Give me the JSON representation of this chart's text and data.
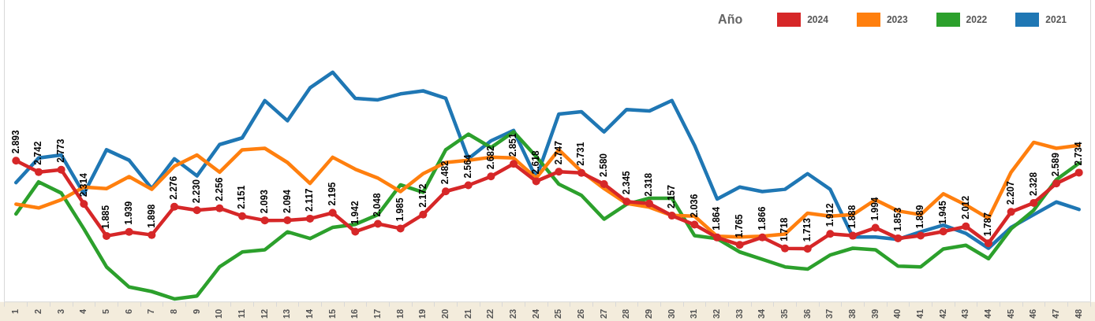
{
  "chart_data": {
    "type": "line",
    "categories": [
      "1",
      "2",
      "3",
      "4",
      "5",
      "6",
      "7",
      "8",
      "9",
      "10",
      "11",
      "12",
      "13",
      "14",
      "15",
      "16",
      "17",
      "18",
      "19",
      "20",
      "21",
      "22",
      "23",
      "24",
      "25",
      "26",
      "27",
      "28",
      "29",
      "30",
      "31",
      "32",
      "33",
      "34",
      "35",
      "36",
      "37",
      "38",
      "39",
      "40",
      "41",
      "42",
      "43",
      "44",
      "45",
      "46",
      "47",
      "48"
    ],
    "legend_title": "Año",
    "legend": "top right",
    "grid": false,
    "tick_labels": "x",
    "line_style": "solid",
    "series": [
      {
        "name": "2024",
        "color": "#d62728",
        "marker": "circle",
        "values": [
          2.893,
          2.742,
          2.773,
          2.314,
          1.885,
          1.939,
          1.898,
          2.276,
          2.23,
          2.256,
          2.151,
          2.093,
          2.094,
          2.117,
          2.195,
          1.942,
          2.048,
          1.985,
          2.172,
          2.482,
          2.564,
          2.682,
          2.851,
          2.618,
          2.747,
          2.731,
          2.58,
          2.345,
          2.318,
          2.157,
          2.036,
          1.864,
          1.765,
          1.866,
          1.718,
          1.713,
          1.912,
          1.888,
          1.994,
          1.853,
          1.889,
          1.945,
          2.012,
          1.787,
          2.207,
          2.328,
          2.589,
          2.734
        ],
        "value_labels": [
          "2.893",
          "2.742",
          "2.773",
          "2.314",
          "1.885",
          "1.939",
          "1.898",
          "2.276",
          "2.230",
          "2.256",
          "2.151",
          "2.093",
          "2.094",
          "2.117",
          "2.195",
          "1.942",
          "2.048",
          "1.985",
          "2.172",
          "2.482",
          "2.564",
          "2.682",
          "2.851",
          "2.618",
          "2.747",
          "2.731",
          "2.580",
          "2.345",
          "2.318",
          "2.157",
          "2.036",
          "1.864",
          "1.765",
          "1.866",
          "1.718",
          "1.713",
          "1.912",
          "1.888",
          "1.994",
          "1.853",
          "1.889",
          "1.945",
          "2.012",
          "1.787",
          "2.207",
          "2.328",
          "2.589",
          "2.734"
        ]
      },
      {
        "name": "2023",
        "color": "#ff7f0e",
        "marker": "none",
        "values": [
          2.31,
          2.26,
          2.37,
          2.54,
          2.52,
          2.68,
          2.51,
          2.82,
          2.97,
          2.74,
          3.04,
          3.06,
          2.87,
          2.59,
          2.94,
          2.78,
          2.66,
          2.48,
          2.72,
          2.87,
          2.9,
          2.94,
          2.93,
          2.66,
          3.04,
          2.75,
          2.52,
          2.32,
          2.27,
          2.16,
          2.15,
          1.88,
          1.87,
          1.88,
          1.91,
          2.19,
          2.15,
          2.17,
          2.37,
          2.22,
          2.17,
          2.45,
          2.3,
          2.12,
          2.74,
          3.14,
          3.06,
          3.1
        ]
      },
      {
        "name": "2022",
        "color": "#2ca02c",
        "marker": "none",
        "values": [
          2.18,
          2.61,
          2.46,
          1.98,
          1.47,
          1.2,
          1.14,
          1.04,
          1.08,
          1.47,
          1.67,
          1.7,
          1.94,
          1.85,
          2.0,
          2.04,
          2.17,
          2.57,
          2.47,
          3.04,
          3.25,
          3.07,
          3.28,
          2.95,
          2.58,
          2.43,
          2.11,
          2.31,
          2.39,
          2.39,
          1.89,
          1.85,
          1.67,
          1.57,
          1.47,
          1.44,
          1.63,
          1.72,
          1.7,
          1.48,
          1.47,
          1.71,
          1.76,
          1.58,
          1.98,
          2.23,
          2.64,
          2.86
        ]
      },
      {
        "name": "2021",
        "color": "#1f77b4",
        "marker": "none",
        "values": [
          2.6,
          2.93,
          2.97,
          2.45,
          3.04,
          2.9,
          2.52,
          2.92,
          2.69,
          3.11,
          3.2,
          3.7,
          3.43,
          3.87,
          4.08,
          3.73,
          3.71,
          3.79,
          3.83,
          3.73,
          2.92,
          3.16,
          3.3,
          2.66,
          3.52,
          3.55,
          3.28,
          3.58,
          3.56,
          3.7,
          3.1,
          2.38,
          2.54,
          2.48,
          2.51,
          2.72,
          2.51,
          1.87,
          1.87,
          1.84,
          1.94,
          2.03,
          1.92,
          1.72,
          2.0,
          2.17,
          2.34,
          2.24
        ]
      }
    ]
  }
}
